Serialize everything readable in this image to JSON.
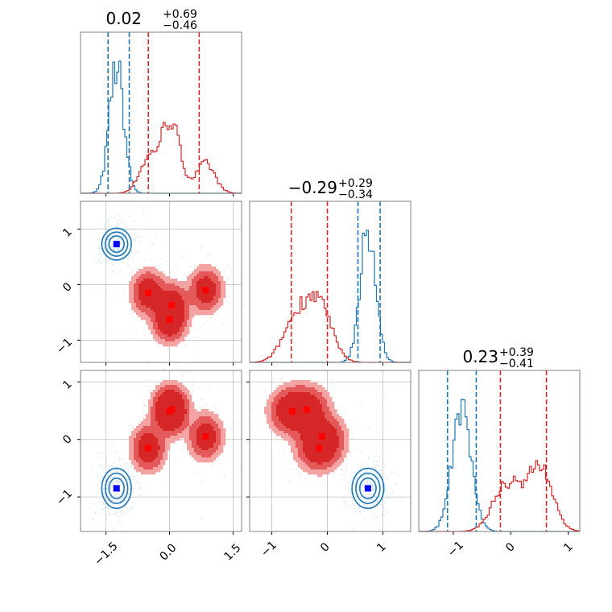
{
  "chart_data": {
    "type": "corner",
    "colors": {
      "blue": "#1f77b4",
      "red": "#d62728",
      "red_light": "#f4a3a3",
      "red_mid": "#e45a5b",
      "marker_blue": "#0000ff",
      "marker_red": "#ff0000",
      "grid": "#c0c0c0"
    },
    "titles": [
      {
        "value": "0.02",
        "plus": "+0.69",
        "minus": "−0.46"
      },
      {
        "value": "−0.29",
        "plus": "+0.29",
        "minus": "−0.34"
      },
      {
        "value": "0.23",
        "plus": "+0.39",
        "minus": "−0.41"
      }
    ],
    "params": [
      {
        "range": [
          -2.1,
          1.7
        ],
        "ticks": [
          -1.5,
          0.0,
          1.5
        ],
        "tick_labels": [
          "−1.5",
          "0.0",
          "1.5"
        ]
      },
      {
        "range": [
          -1.4,
          1.5
        ],
        "ticks": [
          -1,
          0,
          1
        ],
        "tick_labels": [
          "−1",
          "0",
          "1"
        ]
      },
      {
        "range": [
          -1.6,
          1.2
        ],
        "ticks": [
          -1,
          0,
          1
        ],
        "tick_labels": [
          "−1",
          "0",
          "1"
        ]
      }
    ],
    "populations": {
      "blue": {
        "p1": {
          "mu": -1.25,
          "sd": 0.17
        },
        "p2": {
          "mu": 0.73,
          "sd": 0.14
        },
        "p3": {
          "mu": -0.85,
          "sd": 0.17
        }
      },
      "red_modes": [
        {
          "p1": -0.5,
          "p2": -0.15,
          "p3": -0.15
        },
        {
          "p1": 0.05,
          "p2": -0.37,
          "p3": 0.52
        },
        {
          "p1": 0.0,
          "p2": -0.63,
          "p3": 0.49
        },
        {
          "p1": 0.85,
          "p2": -0.1,
          "p3": 0.05
        }
      ],
      "red_sd": 0.2
    },
    "quantile_lines": {
      "blue": {
        "p1": [
          -1.45,
          -0.95
        ],
        "p2": [
          0.55,
          0.95
        ],
        "p3": [
          -1.1,
          -0.6
        ]
      },
      "red": {
        "p1": [
          -0.5,
          0.7
        ],
        "p2": [
          -0.65,
          0.0
        ],
        "p3": [
          -0.18,
          0.62
        ]
      }
    }
  }
}
